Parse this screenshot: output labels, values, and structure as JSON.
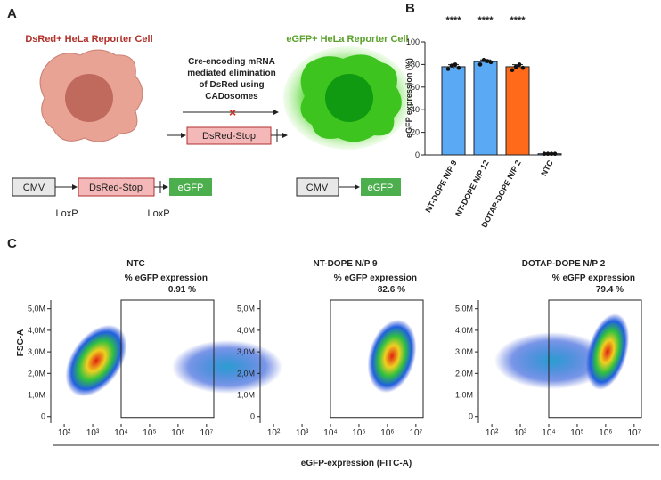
{
  "panel_labels": [
    "A",
    "B",
    "C"
  ],
  "diagram": {
    "left_title": "DsRed+ HeLa Reporter Cell",
    "right_title": "eGFP+ HeLa Reporter Cell",
    "arrow_text": [
      "Cre-encoding mRNA",
      "mediated elimination",
      "of DsRed using",
      "CADosomes"
    ],
    "mid_box": "DsRed-Stop",
    "construct_left": [
      "CMV",
      "DsRed-Stop",
      "eGFP"
    ],
    "loxp": [
      "LoxP",
      "LoxP"
    ],
    "construct_right": [
      "CMV",
      "eGFP"
    ]
  },
  "panel_c": {
    "ylabel": "FSC-A",
    "xlabel": "eGFP-expression (FITC-A)"
  },
  "chart_data": [
    {
      "type": "bar",
      "ylabel": "eGFP expression (%)",
      "categories": [
        "NT-DOPE N/P 9",
        "NT-DOPE N/P 12",
        "DOTAP-DOPE N/P 2",
        "NTC"
      ],
      "values": [
        78,
        82.6,
        78,
        1
      ],
      "errors": [
        1.8,
        1.5,
        1.8,
        0.2
      ],
      "points": [
        [
          76,
          79,
          80,
          77
        ],
        [
          80,
          84,
          83,
          82
        ],
        [
          75,
          78,
          80,
          77
        ],
        [
          1,
          1,
          1,
          1
        ]
      ],
      "colors": [
        "#5aa9f5",
        "#5aa9f5",
        "#ff6a1a",
        "#5aa9f5"
      ],
      "annotations": [
        "****",
        "****",
        "****",
        null
      ],
      "ylim": [
        0,
        100
      ],
      "yticks": [
        0,
        20,
        40,
        60,
        80,
        100
      ]
    },
    {
      "type": "flow",
      "title": "NTC",
      "gate_label": "% eGFP expression",
      "values": [
        0.91
      ],
      "value_labels": [
        "0.91 %"
      ],
      "gate_start": 10000
    },
    {
      "type": "flow",
      "title": "NT-DOPE N/P 9",
      "gate_label": "% eGFP expression",
      "values": [
        82.6
      ],
      "value_labels": [
        "82.6 %"
      ],
      "gate_start": 10000
    },
    {
      "type": "flow",
      "title": "DOTAP-DOPE N/P 2",
      "gate_label": "% eGFP expression",
      "values": [
        79.4
      ],
      "value_labels": [
        "79.4 %"
      ],
      "gate_start": 10000
    }
  ],
  "flow_axes": {
    "log_x": true,
    "xlim": [
      60,
      18000000
    ],
    "xticks": [
      {
        "value": 100,
        "label": "10²"
      },
      {
        "value": 1000,
        "label": "10³"
      },
      {
        "value": 10000,
        "label": "10⁴"
      },
      {
        "value": 100000,
        "label": "10⁵"
      },
      {
        "value": 1000000,
        "label": "10⁶"
      },
      {
        "value": 10000000,
        "label": "10⁷"
      }
    ],
    "ylim": [
      -300000,
      5400000
    ],
    "yticks": [
      0,
      {
        "value": 1000000,
        "label": "1,0M"
      },
      {
        "value": 2000000,
        "label": "2,0M"
      },
      {
        "value": 3000000,
        "label": "3,0M"
      },
      {
        "value": 4000000,
        "label": "4,0M"
      },
      {
        "value": 5000000,
        "label": "5,0M"
      }
    ]
  }
}
